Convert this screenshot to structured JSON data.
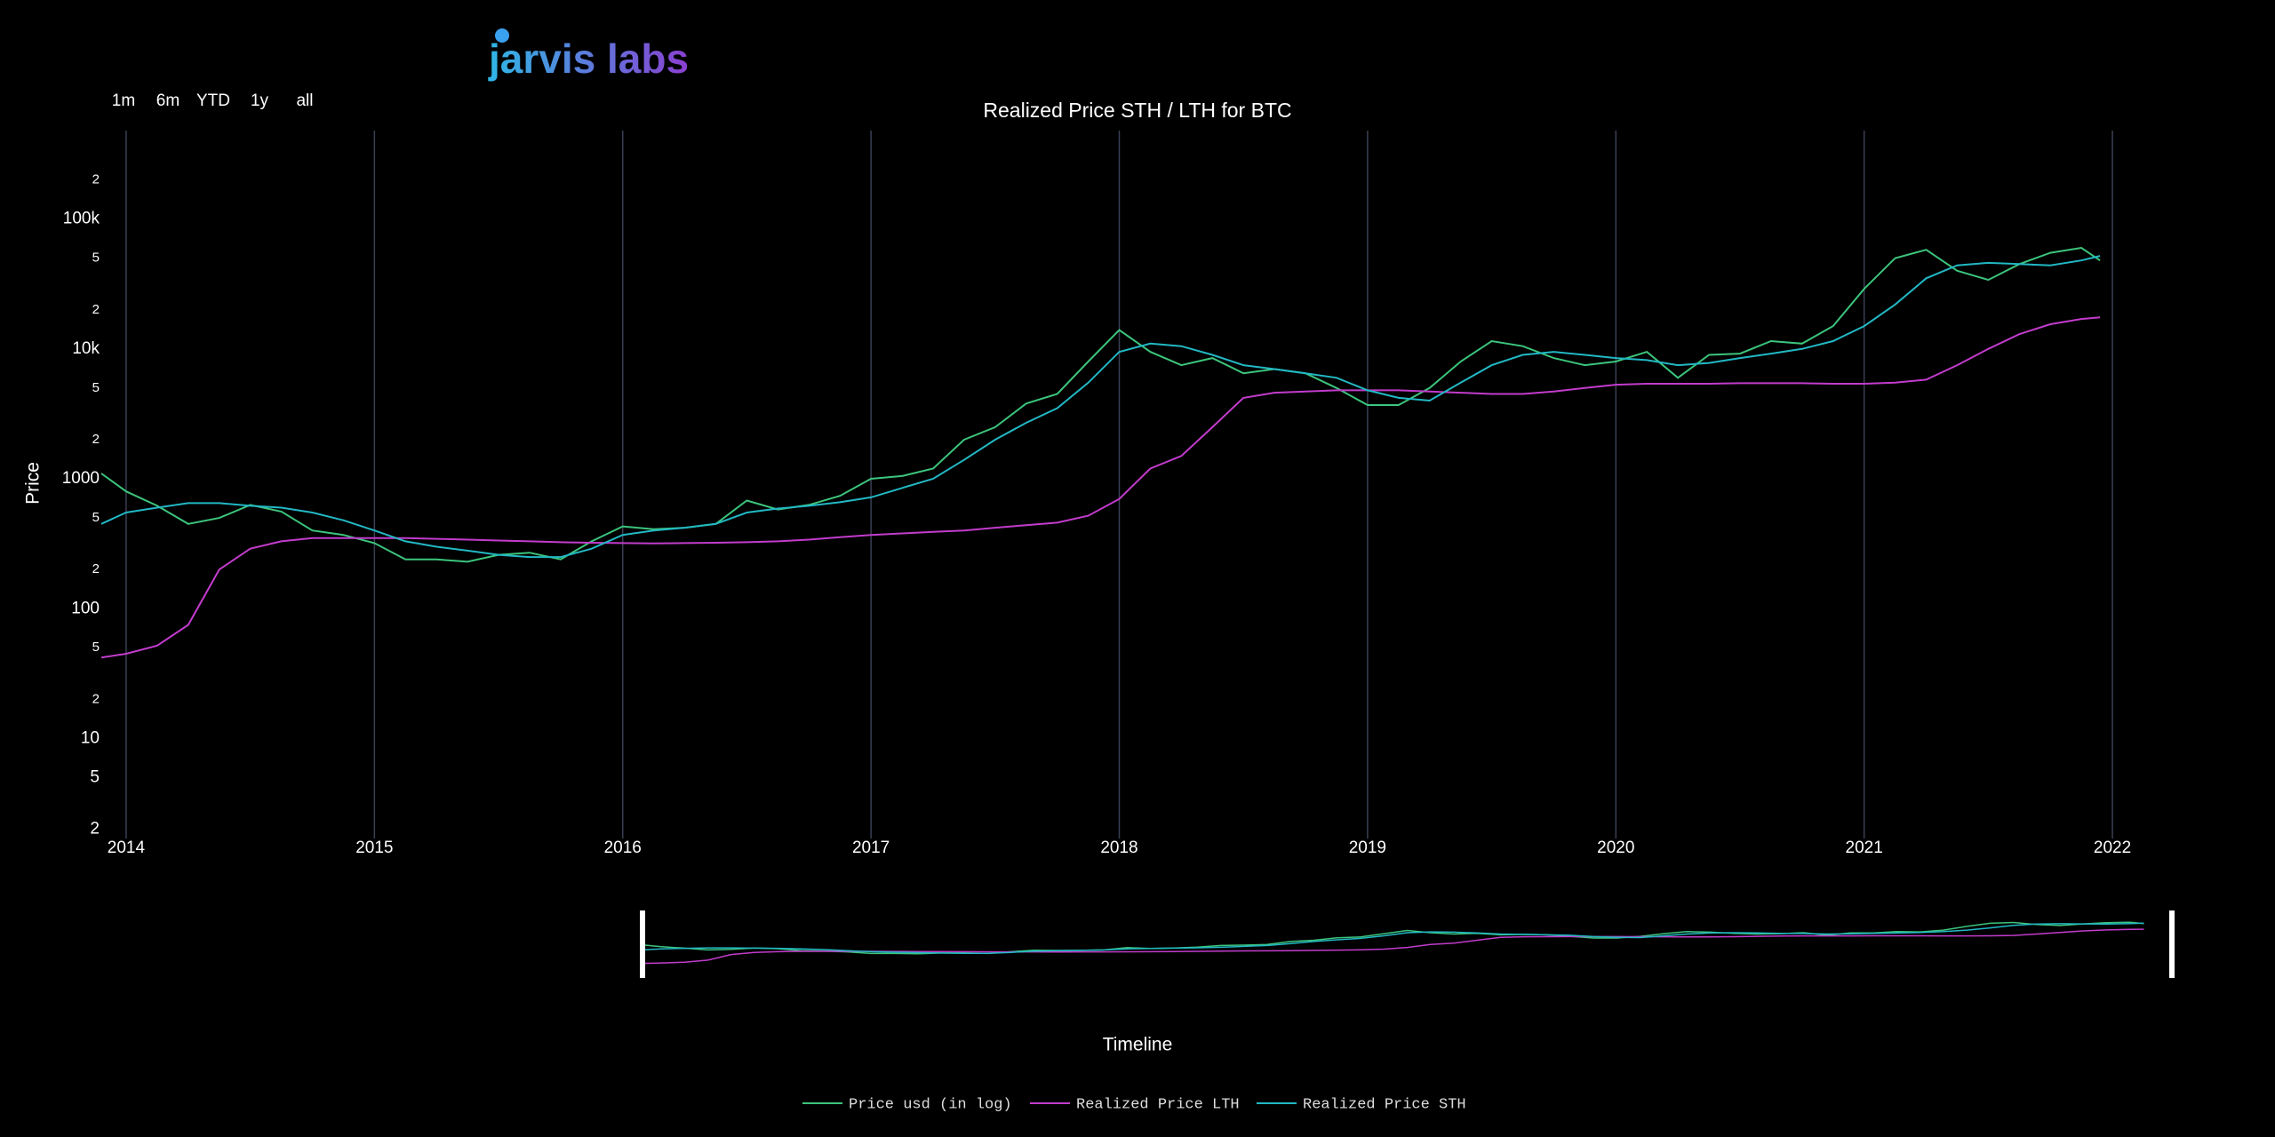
{
  "chart_data": {
    "type": "line",
    "title": "Realized Price STH / LTH for BTC",
    "logo": "jarvis labs",
    "range_buttons": [
      "1m",
      "6m",
      "YTD",
      "1y",
      "all"
    ],
    "ylabel": "Price",
    "xlabel": "Timeline",
    "log_y": true,
    "xgrid": true,
    "xlim": [
      2013.9,
      2022.1
    ],
    "xticks": [
      2014,
      2015,
      2016,
      2017,
      2018,
      2019,
      2020,
      2021,
      2022
    ],
    "ylim": [
      1.7,
      480000
    ],
    "yticks": [
      2,
      5,
      10,
      {
        "value": 20,
        "label": "2"
      },
      {
        "value": 50,
        "label": "5"
      },
      100,
      {
        "value": 200,
        "label": "2"
      },
      {
        "value": 500,
        "label": "5"
      },
      1000,
      {
        "value": 2000,
        "label": "2"
      },
      {
        "value": 5000,
        "label": "5"
      },
      {
        "value": 10000,
        "label": "10k"
      },
      {
        "value": 20000,
        "label": "2"
      },
      {
        "value": 50000,
        "label": "5"
      },
      {
        "value": 100000,
        "label": "100k"
      },
      {
        "value": 200000,
        "label": "2"
      }
    ],
    "x": [
      2013.9,
      2014,
      2014.125,
      2014.25,
      2014.375,
      2014.5,
      2014.625,
      2014.75,
      2014.875,
      2015,
      2015.125,
      2015.25,
      2015.375,
      2015.5,
      2015.625,
      2015.75,
      2015.875,
      2016,
      2016.125,
      2016.25,
      2016.375,
      2016.5,
      2016.625,
      2016.75,
      2016.875,
      2017,
      2017.125,
      2017.25,
      2017.375,
      2017.5,
      2017.625,
      2017.75,
      2017.875,
      2018,
      2018.125,
      2018.25,
      2018.375,
      2018.5,
      2018.625,
      2018.75,
      2018.875,
      2019,
      2019.125,
      2019.25,
      2019.375,
      2019.5,
      2019.625,
      2019.75,
      2019.875,
      2020,
      2020.125,
      2020.25,
      2020.375,
      2020.5,
      2020.625,
      2020.75,
      2020.875,
      2021,
      2021.125,
      2021.25,
      2021.375,
      2021.5,
      2021.625,
      2021.75,
      2021.875,
      2021.95
    ],
    "series": [
      {
        "name": "Price usd (in log)",
        "color": "#3cc47c",
        "values": [
          1100,
          800,
          620,
          450,
          500,
          630,
          560,
          400,
          370,
          320,
          240,
          240,
          230,
          260,
          270,
          240,
          330,
          430,
          410,
          420,
          450,
          680,
          580,
          630,
          740,
          1000,
          1050,
          1200,
          2000,
          2500,
          3800,
          4500,
          8000,
          14000,
          9500,
          7500,
          8500,
          6500,
          7000,
          6500,
          5000,
          3700,
          3700,
          5000,
          8000,
          11500,
          10500,
          8500,
          7500,
          8000,
          9500,
          6000,
          9000,
          9200,
          11500,
          11000,
          15000,
          29000,
          50000,
          58000,
          40000,
          34000,
          45000,
          55000,
          60000,
          48000
        ]
      },
      {
        "name": "Realized Price LTH",
        "color": "#c23ccc",
        "values": [
          42,
          45,
          52,
          75,
          200,
          290,
          330,
          350,
          350,
          350,
          350,
          345,
          340,
          335,
          330,
          325,
          322,
          320,
          318,
          320,
          322,
          325,
          330,
          340,
          355,
          370,
          380,
          390,
          400,
          420,
          440,
          460,
          520,
          700,
          1200,
          1500,
          2500,
          4200,
          4600,
          4700,
          4800,
          4800,
          4800,
          4700,
          4600,
          4500,
          4500,
          4700,
          5000,
          5300,
          5400,
          5400,
          5400,
          5450,
          5450,
          5450,
          5400,
          5400,
          5500,
          5800,
          7500,
          10000,
          13000,
          15500,
          17000,
          17500
        ]
      },
      {
        "name": "Realized Price STH",
        "color": "#22b8c4",
        "values": [
          450,
          550,
          600,
          650,
          650,
          620,
          600,
          550,
          480,
          400,
          330,
          300,
          280,
          260,
          250,
          250,
          290,
          370,
          400,
          420,
          450,
          550,
          590,
          620,
          660,
          720,
          850,
          1000,
          1400,
          2000,
          2700,
          3500,
          5500,
          9500,
          11000,
          10500,
          9000,
          7500,
          7000,
          6500,
          6000,
          4800,
          4200,
          4000,
          5500,
          7500,
          9000,
          9500,
          9000,
          8500,
          8200,
          7500,
          7800,
          8500,
          9200,
          10000,
          11500,
          15000,
          22000,
          35000,
          44000,
          46000,
          45000,
          44000,
          48000,
          52000
        ]
      }
    ]
  }
}
